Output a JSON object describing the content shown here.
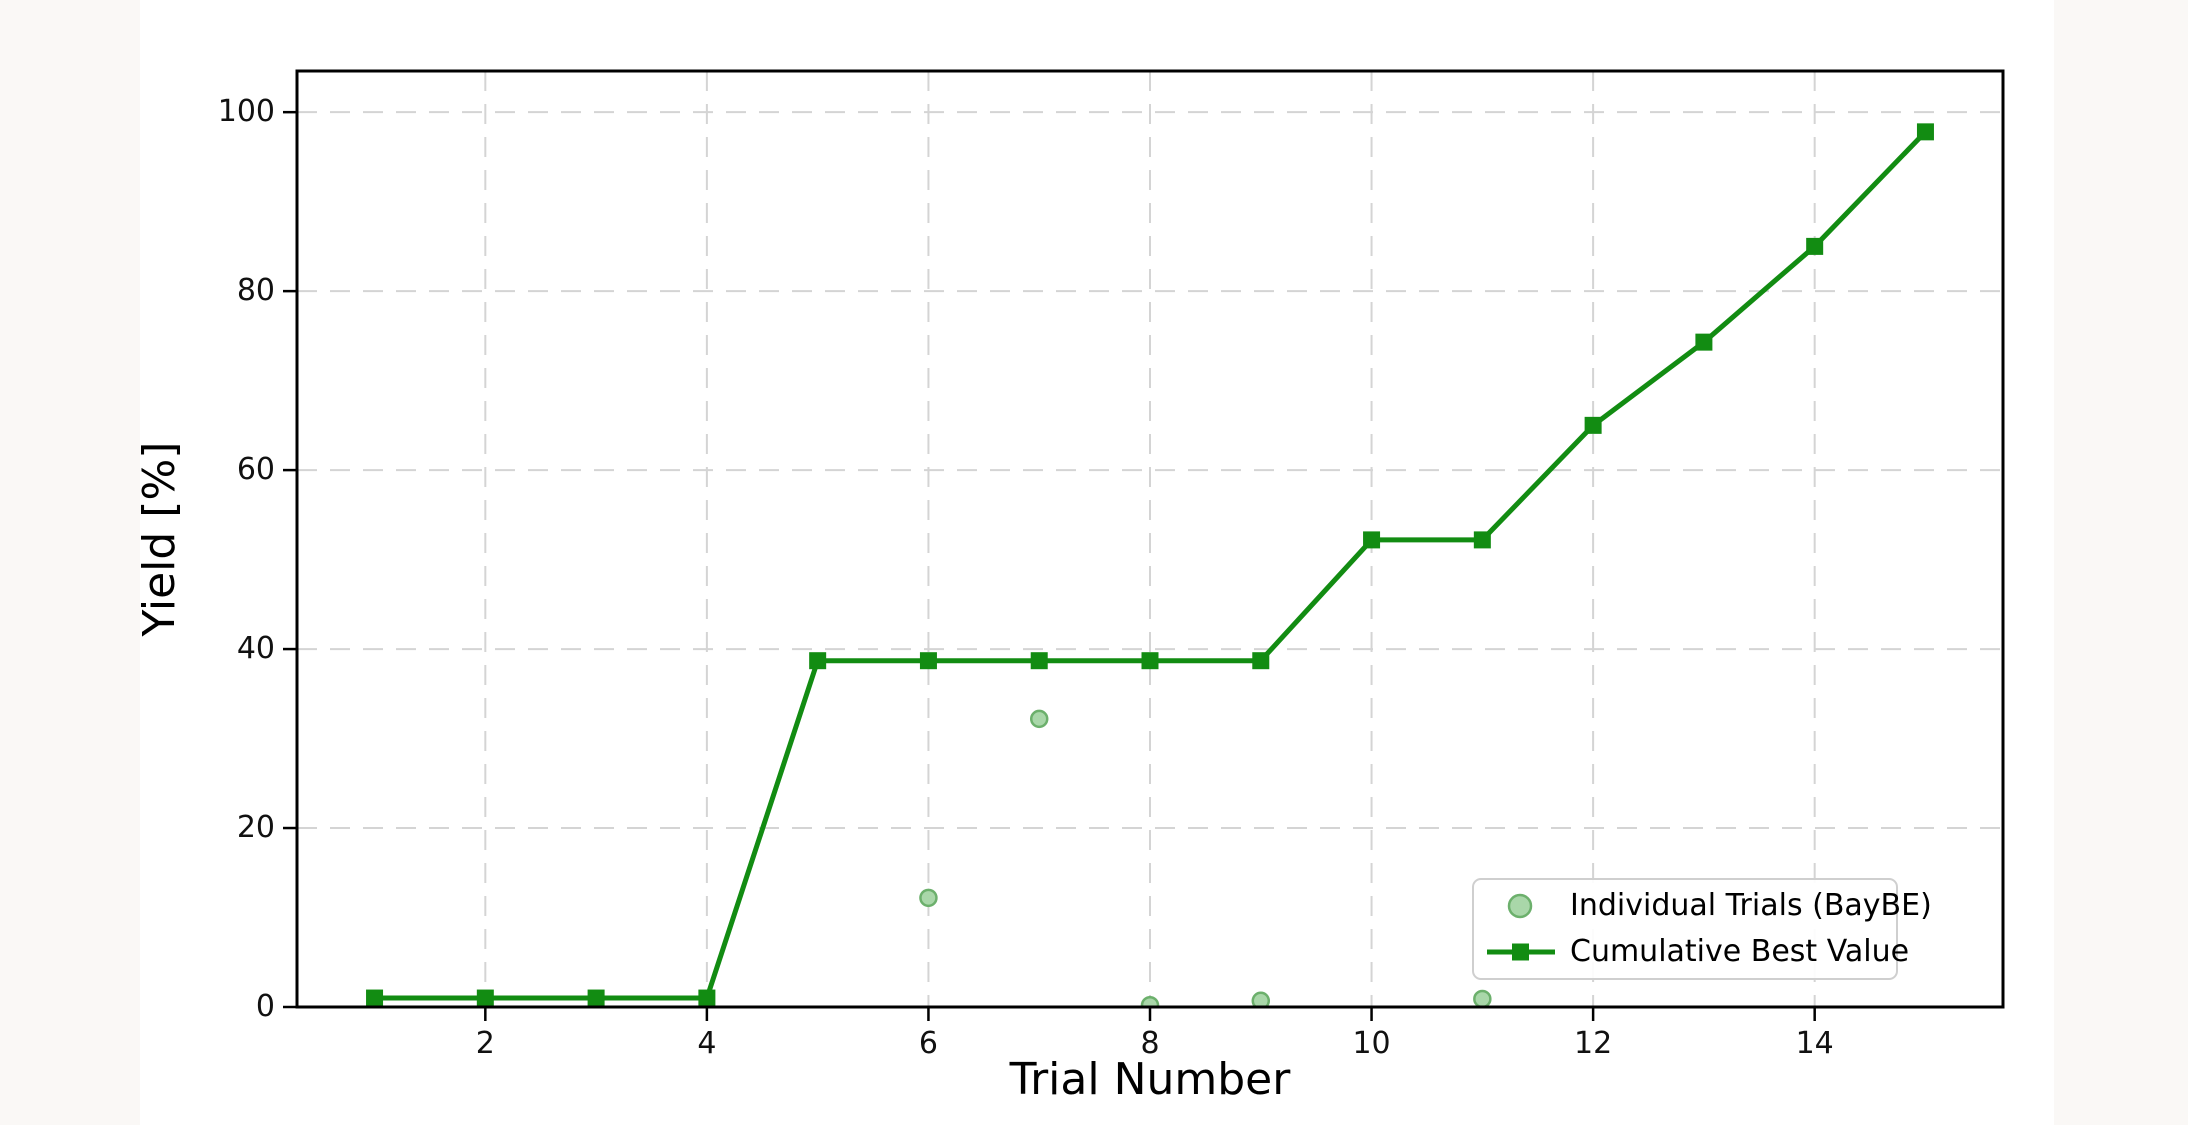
{
  "page": {
    "background_color": "#faf8f6",
    "canvas_color": "#ffffff"
  },
  "chart_data": {
    "type": "line",
    "title": "",
    "xlabel": "Trial Number",
    "ylabel": "Yield [%]",
    "xlim": [
      0.3,
      15.7
    ],
    "ylim": [
      0,
      104.6
    ],
    "xticks": [
      2,
      4,
      6,
      8,
      10,
      12,
      14
    ],
    "yticks": [
      0,
      20,
      40,
      60,
      80,
      100
    ],
    "grid": true,
    "grid_color": "#d4d4d4",
    "spine_color": "#000000",
    "legend_position": "lower right",
    "series": [
      {
        "name": "Individual Trials (BayBE)",
        "type": "scatter",
        "marker": "circle",
        "marker_fill": "#a9d7a9",
        "marker_edge": "#6cb06c",
        "x": [
          6,
          7,
          8,
          9,
          11
        ],
        "y": [
          12.2,
          32.2,
          0.2,
          0.7,
          0.9
        ]
      },
      {
        "name": "Cumulative Best Value",
        "type": "line",
        "marker": "square",
        "color": "#128c12",
        "x": [
          1,
          2,
          3,
          4,
          5,
          6,
          7,
          8,
          9,
          10,
          11,
          12,
          13,
          14,
          15
        ],
        "y": [
          1.0,
          1.0,
          1.0,
          1.0,
          38.7,
          38.7,
          38.7,
          38.7,
          38.7,
          52.2,
          52.2,
          65.0,
          74.3,
          85.0,
          97.8
        ]
      }
    ]
  }
}
